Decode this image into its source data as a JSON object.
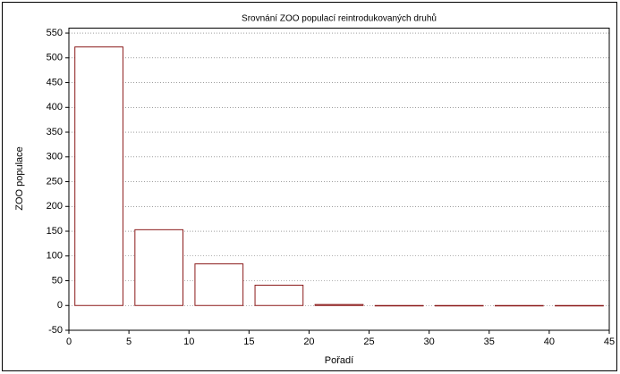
{
  "chart_data": {
    "type": "bar",
    "title": "Srovnání ZOO populací reintrodukovaných druhů",
    "x_label": "Pořadí",
    "y_label": "ZOO populace",
    "x": [
      2.5,
      7.5,
      12.5,
      17.5,
      22.5,
      27.5,
      32.5,
      37.5,
      42.5
    ],
    "values": [
      522,
      153,
      84,
      41,
      2,
      0,
      0,
      0,
      0
    ],
    "color": "#8b1a1a",
    "xlim": [
      0,
      45
    ],
    "xticks": [
      0,
      5,
      10,
      15,
      20,
      25,
      30,
      35,
      40,
      45
    ],
    "ylim": [
      -50,
      560
    ],
    "yticks": [
      -50,
      0,
      50,
      100,
      150,
      200,
      250,
      300,
      350,
      400,
      450,
      500,
      550
    ],
    "grid": true
  }
}
